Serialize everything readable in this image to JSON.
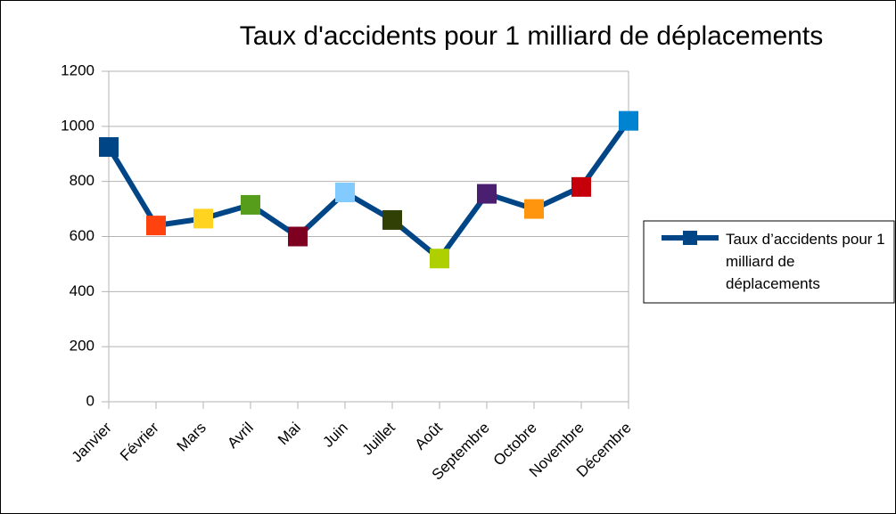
{
  "chart_data": {
    "type": "line",
    "title": "Taux d'accidents pour 1 milliard de déplacements",
    "categories": [
      "Janvier",
      "Février",
      "Mars",
      "Avril",
      "Mai",
      "Juin",
      "Juillet",
      "Août",
      "Septembre",
      "Octobre",
      "Novembre",
      "Décembre"
    ],
    "series": [
      {
        "name": "Taux d’accidents pour 1 milliard de déplacements",
        "color": "#004586",
        "values": [
          925,
          640,
          665,
          715,
          600,
          760,
          660,
          520,
          755,
          700,
          780,
          1020
        ]
      }
    ],
    "point_colors": [
      "#004586",
      "#ff420e",
      "#ffd320",
      "#579d1c",
      "#7e0021",
      "#83caff",
      "#314004",
      "#aecf00",
      "#4b1f6f",
      "#ff950e",
      "#c5000b",
      "#0084d1"
    ],
    "ylim": [
      0,
      1200
    ],
    "yticks": [
      0,
      200,
      400,
      600,
      800,
      1000,
      1200
    ],
    "grid": true,
    "legend": "right"
  }
}
